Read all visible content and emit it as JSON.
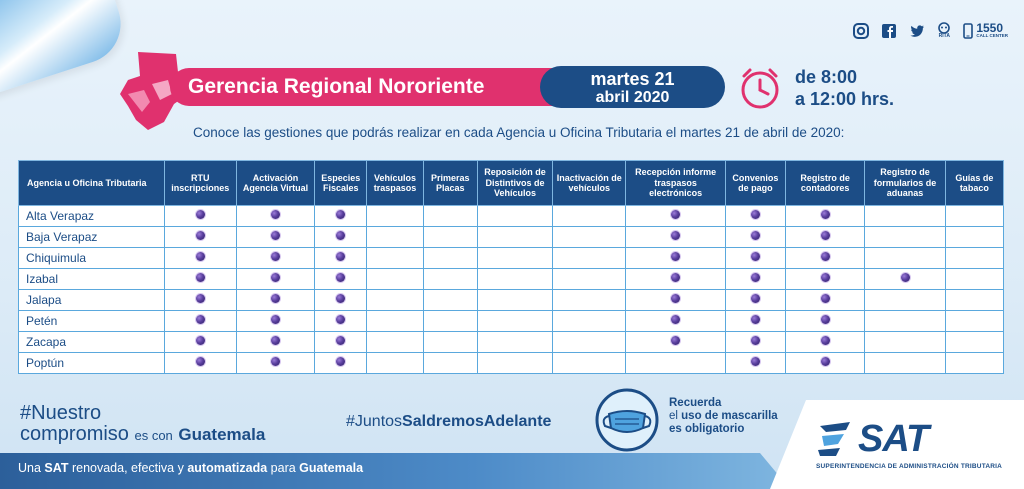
{
  "header": {
    "region_title": "Gerencia Regional Nororiente",
    "date_line1": "martes 21",
    "date_line2": "abril 2020",
    "hours_line1": "de 8:00",
    "hours_line2": "a 12:00 hrs.",
    "subtitle": "Conoce las gestiones que podrás realizar en cada Agencia u Oficina Tributaria el martes 21 de abril de 2020:"
  },
  "social": {
    "call_center": "1550",
    "call_center_label": "CALL CENTER",
    "rita_label": "RITA",
    "icons": [
      "instagram-icon",
      "facebook-icon",
      "twitter-icon",
      "rita-icon",
      "phone-icon"
    ]
  },
  "table": {
    "headers": [
      "Agencia u Oficina Tributaria",
      "RTU inscripciones",
      "Activación Agencia Virtual",
      "Especies Fiscales",
      "Vehículos traspasos",
      "Primeras Placas",
      "Reposición de Distintivos de Vehículos",
      "Inactivación de vehículos",
      "Recepción informe traspasos electrónicos",
      "Convenios de pago",
      "Registro de contadores",
      "Registro de formularios de aduanas",
      "Guías de tabaco"
    ],
    "rows": [
      {
        "name": "Alta Verapaz",
        "marks": [
          1,
          1,
          1,
          0,
          0,
          0,
          0,
          1,
          1,
          1,
          0,
          0
        ]
      },
      {
        "name": "Baja Verapaz",
        "marks": [
          1,
          1,
          1,
          0,
          0,
          0,
          0,
          1,
          1,
          1,
          0,
          0
        ]
      },
      {
        "name": "Chiquimula",
        "marks": [
          1,
          1,
          1,
          0,
          0,
          0,
          0,
          1,
          1,
          1,
          0,
          0
        ]
      },
      {
        "name": "Izabal",
        "marks": [
          1,
          1,
          1,
          0,
          0,
          0,
          0,
          1,
          1,
          1,
          1,
          0
        ]
      },
      {
        "name": "Jalapa",
        "marks": [
          1,
          1,
          1,
          0,
          0,
          0,
          0,
          1,
          1,
          1,
          0,
          0
        ]
      },
      {
        "name": "Petén",
        "marks": [
          1,
          1,
          1,
          0,
          0,
          0,
          0,
          1,
          1,
          1,
          0,
          0
        ]
      },
      {
        "name": "Zacapa",
        "marks": [
          1,
          1,
          1,
          0,
          0,
          0,
          0,
          1,
          1,
          1,
          0,
          0
        ]
      },
      {
        "name": "Poptún",
        "marks": [
          1,
          1,
          1,
          0,
          0,
          0,
          0,
          0,
          1,
          1,
          0,
          0
        ]
      }
    ]
  },
  "footer": {
    "hashtag1_a": "#Nuestro",
    "hashtag1_b": "compromiso",
    "hashtag1_c": "es con",
    "hashtag1_d": "Guatemala",
    "hashtag2_a": "#Juntos",
    "hashtag2_b": "Saldremos",
    "hashtag2_c": "Adelante",
    "mask_line1": "Recuerda",
    "mask_line2a": "el ",
    "mask_line2b": "uso de mascarilla",
    "mask_line3": "es obligatorio",
    "band_a": "Una ",
    "band_b": "SAT",
    "band_c": " renovada, efectiva y ",
    "band_d": "automatizada",
    "band_e": " para ",
    "band_f": "Guatemala",
    "logo": "SAT",
    "logo_sub": "SUPERINTENDENCIA DE ADMINISTRACIÓN TRIBUTARIA"
  },
  "colors": {
    "brand_blue": "#1c4d86",
    "accent_pink": "#e0316e",
    "grid_blue": "#5aa8dd"
  }
}
